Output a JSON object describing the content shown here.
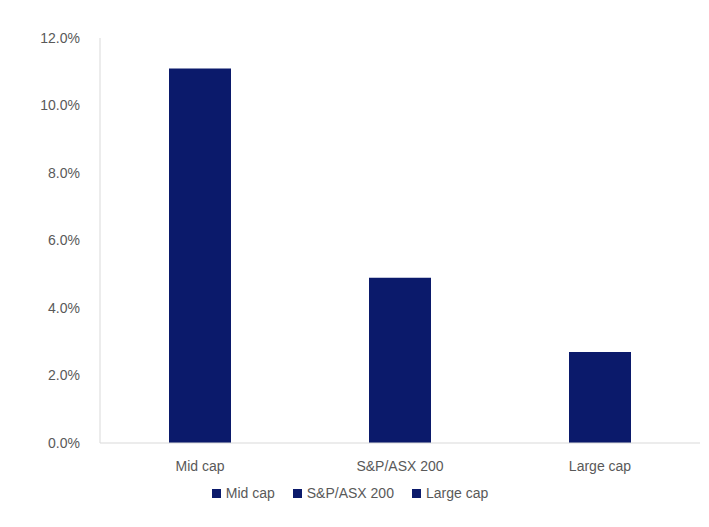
{
  "chart_data": {
    "type": "bar",
    "categories": [
      "Mid cap",
      "S&P/ASX 200",
      "Large cap"
    ],
    "values": [
      11.1,
      4.9,
      2.7
    ],
    "colors": [
      "#0b1a6b",
      "#0b1a6b",
      "#0b1a6b"
    ],
    "ylim": [
      0,
      12
    ],
    "yticks": [
      {
        "value": 0,
        "label": "0.0%"
      },
      {
        "value": 2,
        "label": "2.0%"
      },
      {
        "value": 4,
        "label": "4.0%"
      },
      {
        "value": 6,
        "label": "6.0%"
      },
      {
        "value": 8,
        "label": "8.0%"
      },
      {
        "value": 10,
        "label": "10.0%"
      },
      {
        "value": 12,
        "label": "12.0%"
      }
    ],
    "grid": false,
    "legend": "bottom"
  }
}
